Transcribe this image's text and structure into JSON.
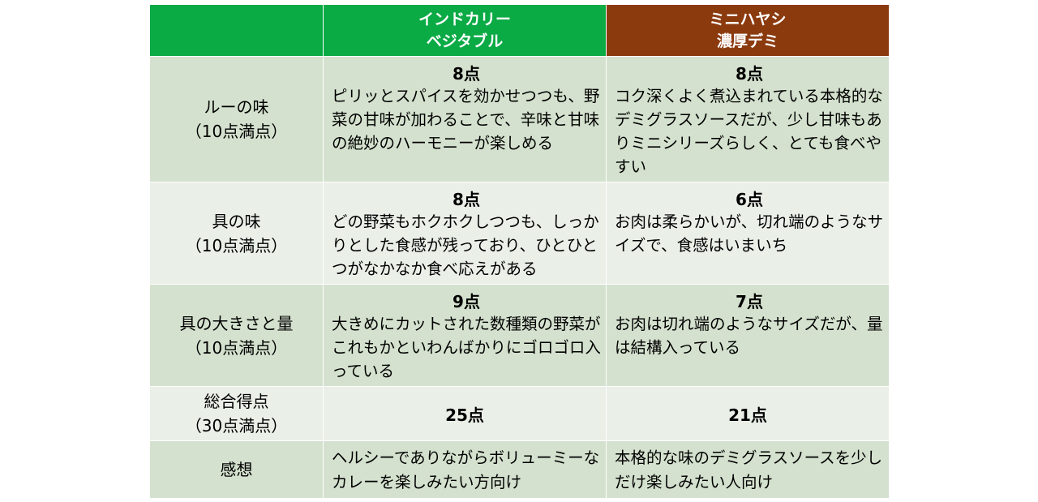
{
  "header": {
    "product_a": [
      "インドカリー",
      "ベジタブル"
    ],
    "product_b": [
      "ミニハヤシ",
      "濃厚デミ"
    ]
  },
  "colors": {
    "header_a": "#0aaa45",
    "header_b": "#8b3a0e",
    "row_dark": "#d4e1ce",
    "row_light": "#eaefe8"
  },
  "rows": [
    {
      "label": [
        "ルーの味",
        "（10点満点）"
      ],
      "a": {
        "score": "8点",
        "text": "ピリッとスパイスを効かせつつも、野菜の甘味が加わることで、辛味と甘味の絶妙のハーモニーが楽しめる"
      },
      "b": {
        "score": "8点",
        "text": "コク深くよく煮込まれている本格的なデミグラスソースだが、少し甘味もありミニシリーズらしく、とても食べやすい"
      }
    },
    {
      "label": [
        "具の味",
        "（10点満点）"
      ],
      "a": {
        "score": "8点",
        "text": "どの野菜もホクホクしつつも、しっかりとした食感が残っており、ひとひとつがなかなか食べ応えがある"
      },
      "b": {
        "score": "6点",
        "text": "お肉は柔らかいが、切れ端のようなサイズで、食感はいまいち"
      }
    },
    {
      "label": [
        "具の大きさと量",
        "（10点満点）"
      ],
      "a": {
        "score": "9点",
        "text": "大きめにカットされた数種類の野菜がこれもかといわんばかりにゴロゴロ入っている"
      },
      "b": {
        "score": "7点",
        "text": "お肉は切れ端のようなサイズだが、量は結構入っている"
      }
    },
    {
      "label": [
        "総合得点",
        "（30点満点）"
      ],
      "a": {
        "score": "25点"
      },
      "b": {
        "score": "21点"
      }
    },
    {
      "label": [
        "感想"
      ],
      "a": {
        "text": "ヘルシーでありながらボリューミーなカレーを楽しみたい方向け"
      },
      "b": {
        "text": "本格的な味のデミグラスソースを少しだけ楽しみたい人向け"
      }
    }
  ]
}
